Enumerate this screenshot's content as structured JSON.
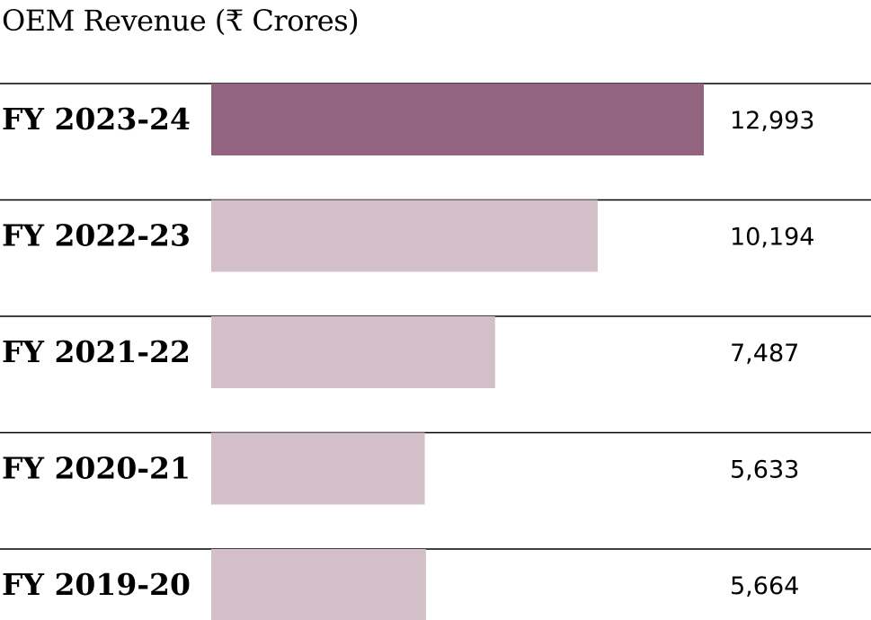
{
  "chart_data": {
    "type": "bar",
    "orientation": "horizontal",
    "title": "OEM Revenue (₹ Crores)",
    "categories": [
      "FY 2023-24",
      "FY 2022-23",
      "FY 2021-22",
      "FY 2020-21",
      "FY 2019-20"
    ],
    "values": [
      12993,
      10194,
      7487,
      5633,
      5664
    ],
    "value_labels": [
      "12,993",
      "10,194",
      "7,487",
      "5,633",
      "5,664"
    ],
    "xlim": [
      0,
      12993
    ],
    "grid": false,
    "colors": {
      "highlight": "#93647F",
      "default": "#D3BFC8",
      "rule": "#000000"
    },
    "highlight_index": 0
  }
}
